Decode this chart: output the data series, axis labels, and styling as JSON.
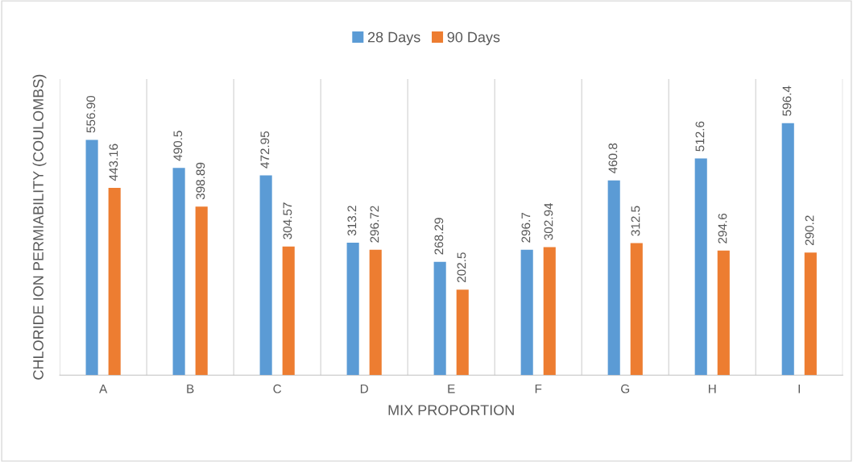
{
  "chart_data": {
    "type": "bar",
    "xlabel": "MIX PROPORTION",
    "ylabel": "CHLORIDE ION PERMIABILITY (COULOMBS)",
    "categories": [
      "A",
      "B",
      "C",
      "D",
      "E",
      "F",
      "G",
      "H",
      "I"
    ],
    "series": [
      {
        "name": "28 Days",
        "color": "#5b9bd5",
        "values": [
          556.9,
          490.5,
          472.95,
          313.2,
          268.29,
          296.7,
          460.8,
          512.6,
          596.4
        ],
        "value_labels": [
          "556.90",
          "490.5",
          "472.95",
          "313.2",
          "268.29",
          "296.7",
          "460.8",
          "512.6",
          "596.4"
        ]
      },
      {
        "name": "90 Days",
        "color": "#ed7d31",
        "values": [
          443.16,
          398.89,
          304.57,
          296.72,
          202.5,
          302.94,
          312.5,
          294.6,
          290.2
        ],
        "value_labels": [
          "443.16",
          "398.89",
          "304.57",
          "296.72",
          "202.5",
          "302.94",
          "312.5",
          "294.6",
          "290.2"
        ]
      }
    ],
    "grid": "x",
    "legend": "top"
  }
}
